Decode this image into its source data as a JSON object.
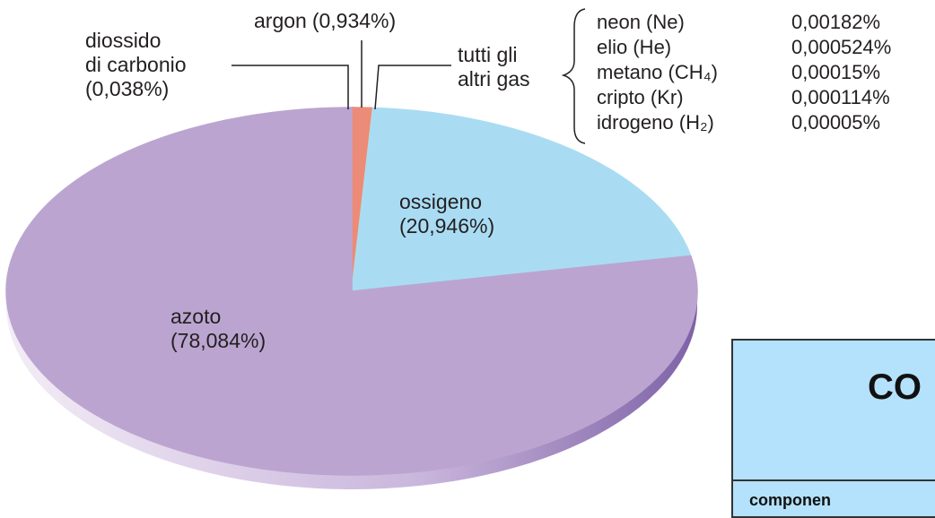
{
  "chart_data": {
    "type": "pie",
    "categories": [
      "diossido\ndi carbonio",
      "argon",
      "tutti gli\naltri gas",
      "ossigeno",
      "azoto"
    ],
    "values": [
      0.038,
      0.934,
      0.003,
      20.946,
      78.084
    ],
    "value_labels": [
      "(0,038%)",
      "(0,934%)",
      null,
      "(20,946%)",
      "(78,084%)"
    ],
    "colors": [
      "#9a4a20",
      "#ec8b78",
      "#f2e24c",
      "#a9dcf3",
      "#bba5d0"
    ],
    "other_gases": [
      {
        "name": "neon (Ne)",
        "value": "0,00182%"
      },
      {
        "name": "elio (He)",
        "value": "0,000524%"
      },
      {
        "name": "metano (CH₄)",
        "value": "0,00015%"
      },
      {
        "name": "cripto (Kr)",
        "value": "0,000114%"
      },
      {
        "name": "idrogeno (H₂)",
        "value": "0,00005%"
      }
    ]
  },
  "table": {
    "title": "CO",
    "header": "componen"
  }
}
